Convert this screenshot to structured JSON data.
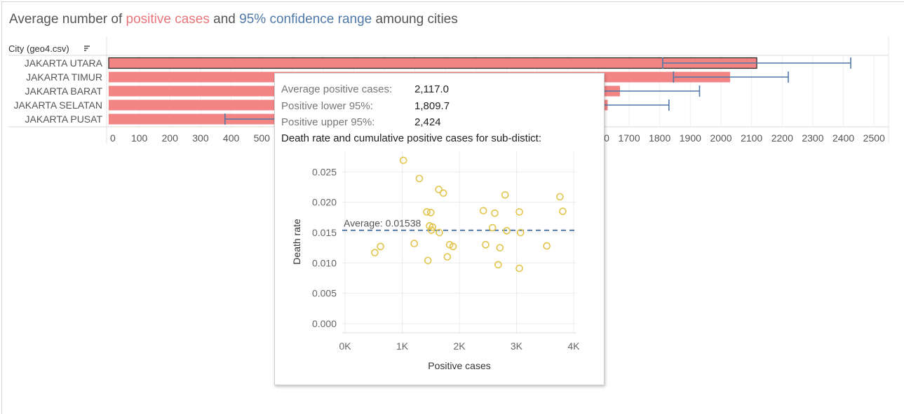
{
  "title": {
    "prefix": "Average number of ",
    "positive": "positive cases",
    "middle": " and ",
    "confidence": "95% confidence range",
    "suffix": " amoung cities"
  },
  "colors": {
    "bar": "#f28484",
    "errorbar": "#4e79a7",
    "scatter_point": "#e3c44a",
    "average_line": "#4e79a7",
    "title_positive": "#e8757a",
    "title_confidence": "#4e79a7"
  },
  "main_chart": {
    "row_header": "City (geo4.csv)",
    "sort_icon": "sort-descending-icon",
    "chart_data": {
      "type": "bar",
      "orientation": "horizontal",
      "categories": [
        "JAKARTA UTARA",
        "JAKARTA TIMUR",
        "JAKARTA BARAT",
        "JAKARTA SELATAN",
        "JAKARTA PUSAT"
      ],
      "series": [
        {
          "name": "Average positive cases",
          "values": [
            2117.0,
            2030,
            1670,
            1630,
            560
          ]
        },
        {
          "name": "Positive lower 95%",
          "values": [
            1809.7,
            1845,
            1300,
            1250,
            380
          ]
        },
        {
          "name": "Positive upper 95%",
          "values": [
            2424,
            2220,
            1930,
            1830,
            740
          ]
        }
      ],
      "selected": "JAKARTA UTARA",
      "xlim": [
        0,
        2550
      ],
      "xticks": [
        0,
        100,
        200,
        300,
        400,
        500,
        600,
        700,
        800,
        900,
        1000,
        1100,
        1200,
        1300,
        1400,
        1500,
        1600,
        1700,
        1800,
        1900,
        2000,
        2100,
        2200,
        2300,
        2400,
        2500
      ],
      "grid": true
    }
  },
  "tooltip": {
    "rows": [
      {
        "label": "Average positive cases:",
        "value": "2,117.0"
      },
      {
        "label": "Positive lower 95%:",
        "value": "1,809.7"
      },
      {
        "label": "Positive upper 95%:",
        "value": "2,424"
      }
    ],
    "heading": "Death rate and cumulative positive cases for sub-distict:",
    "chart_data": {
      "type": "scatter",
      "xlabel": "Positive cases",
      "ylabel": "Death rate",
      "xlim": [
        -50,
        4050
      ],
      "ylim": [
        -0.0015,
        0.0285
      ],
      "xticks": [
        0,
        1000,
        2000,
        3000,
        4000
      ],
      "xtick_labels": [
        "0K",
        "1K",
        "2K",
        "3K",
        "4K"
      ],
      "yticks": [
        0.0,
        0.005,
        0.01,
        0.015,
        0.02,
        0.025
      ],
      "ytick_labels": [
        "0.000",
        "0.005",
        "0.010",
        "0.015",
        "0.020",
        "0.025"
      ],
      "reference_line": {
        "label": "Average: 0.01538",
        "value": 0.01538
      },
      "grid": true,
      "points": [
        {
          "x": 1020,
          "y": 0.0269
        },
        {
          "x": 1300,
          "y": 0.0239
        },
        {
          "x": 1640,
          "y": 0.0221
        },
        {
          "x": 1720,
          "y": 0.0215
        },
        {
          "x": 1430,
          "y": 0.0184
        },
        {
          "x": 1500,
          "y": 0.0183
        },
        {
          "x": 1480,
          "y": 0.0161
        },
        {
          "x": 1530,
          "y": 0.0159
        },
        {
          "x": 1510,
          "y": 0.0154
        },
        {
          "x": 1650,
          "y": 0.015
        },
        {
          "x": 1210,
          "y": 0.0132
        },
        {
          "x": 620,
          "y": 0.0127
        },
        {
          "x": 520,
          "y": 0.0117
        },
        {
          "x": 1450,
          "y": 0.0104
        },
        {
          "x": 1830,
          "y": 0.013
        },
        {
          "x": 1890,
          "y": 0.0127
        },
        {
          "x": 1790,
          "y": 0.011
        },
        {
          "x": 2420,
          "y": 0.0186
        },
        {
          "x": 2620,
          "y": 0.0182
        },
        {
          "x": 2800,
          "y": 0.0212
        },
        {
          "x": 2580,
          "y": 0.0158
        },
        {
          "x": 2830,
          "y": 0.0153
        },
        {
          "x": 2460,
          "y": 0.013
        },
        {
          "x": 2710,
          "y": 0.0125
        },
        {
          "x": 2680,
          "y": 0.0097
        },
        {
          "x": 3050,
          "y": 0.0184
        },
        {
          "x": 3070,
          "y": 0.015
        },
        {
          "x": 3050,
          "y": 0.0091
        },
        {
          "x": 3530,
          "y": 0.0128
        },
        {
          "x": 3760,
          "y": 0.0209
        },
        {
          "x": 3810,
          "y": 0.0185
        }
      ]
    }
  }
}
